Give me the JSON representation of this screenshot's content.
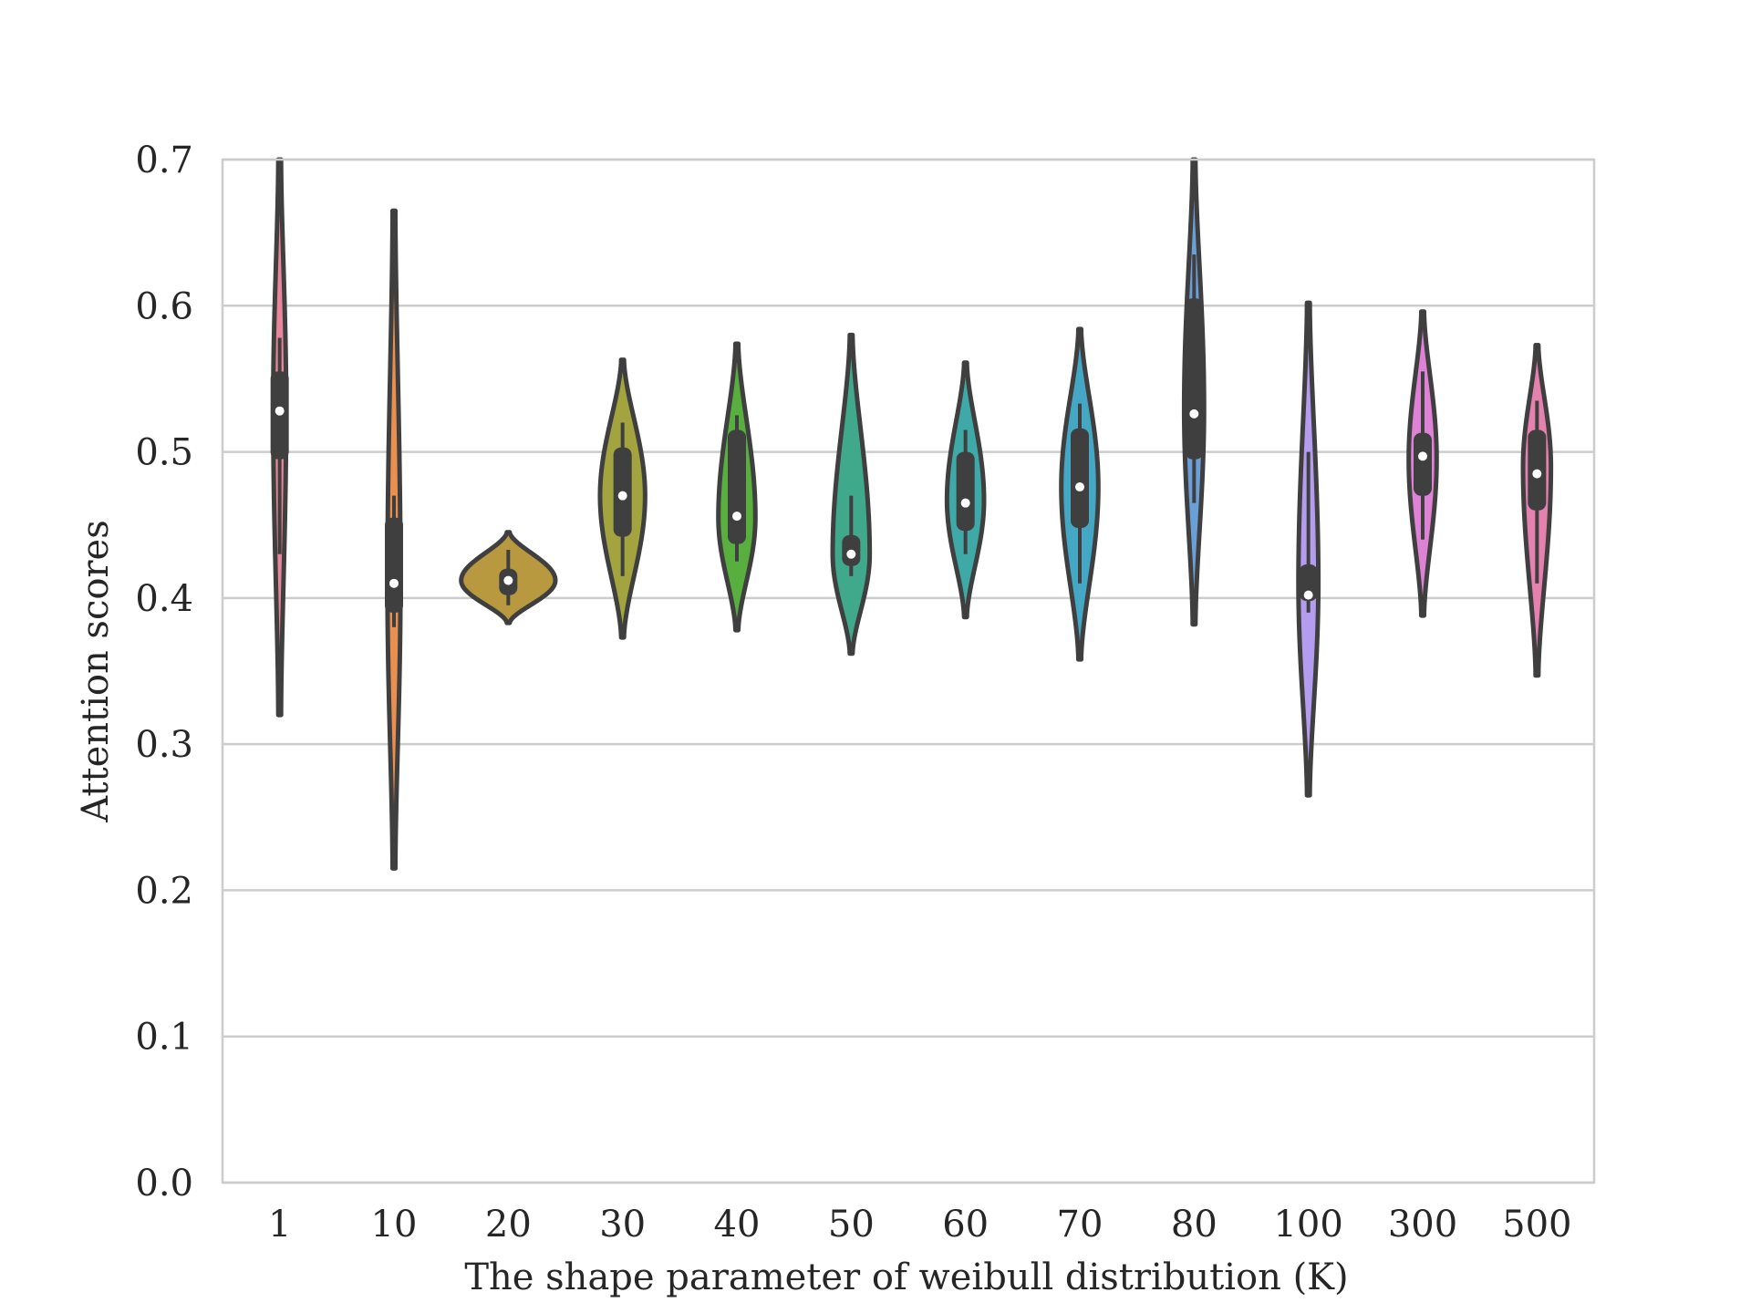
{
  "chart_data": {
    "type": "violin",
    "title": "",
    "xlabel": "The shape parameter of weibull distribution (K)",
    "ylabel": "Attention scores",
    "ylim": [
      0.0,
      0.7
    ],
    "yticks": [
      "0.0",
      "0.1",
      "0.2",
      "0.3",
      "0.4",
      "0.5",
      "0.6",
      "0.7"
    ],
    "grid": "horizontal",
    "legend": "none",
    "categories": [
      "1",
      "10",
      "20",
      "30",
      "40",
      "50",
      "60",
      "70",
      "80",
      "100",
      "300",
      "500"
    ],
    "colors": [
      "#e8869a",
      "#e99050",
      "#b8993f",
      "#a3a43f",
      "#58ae3e",
      "#40a98b",
      "#3ea9a7",
      "#44a7c4",
      "#6b9fd8",
      "#b49cee",
      "#dd82d4",
      "#e481ae"
    ],
    "violins": [
      {
        "min": 0.32,
        "q1": 0.495,
        "median": 0.528,
        "q3": 0.555,
        "max": 0.7,
        "whisker_low": 0.43,
        "whisker_high": 0.578,
        "peak": 0.53,
        "width": 0.09
      },
      {
        "min": 0.215,
        "q1": 0.39,
        "median": 0.41,
        "q3": 0.455,
        "max": 0.665,
        "whisker_low": 0.38,
        "whisker_high": 0.47,
        "peak": 0.41,
        "width": 0.09
      },
      {
        "min": 0.383,
        "q1": 0.402,
        "median": 0.412,
        "q3": 0.42,
        "max": 0.445,
        "whisker_low": 0.395,
        "whisker_high": 0.433,
        "peak": 0.412,
        "width": 0.8
      },
      {
        "min": 0.373,
        "q1": 0.442,
        "median": 0.47,
        "q3": 0.503,
        "max": 0.563,
        "whisker_low": 0.415,
        "whisker_high": 0.52,
        "peak": 0.47,
        "width": 0.37
      },
      {
        "min": 0.378,
        "q1": 0.437,
        "median": 0.456,
        "q3": 0.515,
        "max": 0.574,
        "whisker_low": 0.425,
        "whisker_high": 0.525,
        "peak": 0.455,
        "width": 0.3
      },
      {
        "min": 0.362,
        "q1": 0.422,
        "median": 0.43,
        "q3": 0.443,
        "max": 0.58,
        "whisker_low": 0.415,
        "whisker_high": 0.47,
        "peak": 0.43,
        "width": 0.3
      },
      {
        "min": 0.387,
        "q1": 0.446,
        "median": 0.465,
        "q3": 0.5,
        "max": 0.561,
        "whisker_low": 0.43,
        "whisker_high": 0.515,
        "peak": 0.467,
        "width": 0.3
      },
      {
        "min": 0.358,
        "q1": 0.448,
        "median": 0.476,
        "q3": 0.516,
        "max": 0.584,
        "whisker_low": 0.41,
        "whisker_high": 0.533,
        "peak": 0.476,
        "width": 0.3
      },
      {
        "min": 0.382,
        "q1": 0.495,
        "median": 0.526,
        "q3": 0.605,
        "max": 0.7,
        "whisker_low": 0.465,
        "whisker_high": 0.635,
        "peak": 0.53,
        "width": 0.15
      },
      {
        "min": 0.265,
        "q1": 0.398,
        "median": 0.402,
        "q3": 0.423,
        "max": 0.602,
        "whisker_low": 0.39,
        "whisker_high": 0.5,
        "peak": 0.41,
        "width": 0.15
      },
      {
        "min": 0.388,
        "q1": 0.47,
        "median": 0.497,
        "q3": 0.513,
        "max": 0.596,
        "whisker_low": 0.44,
        "whisker_high": 0.555,
        "peak": 0.495,
        "width": 0.22
      },
      {
        "min": 0.347,
        "q1": 0.46,
        "median": 0.485,
        "q3": 0.515,
        "max": 0.573,
        "whisker_low": 0.41,
        "whisker_high": 0.535,
        "peak": 0.49,
        "width": 0.22
      }
    ]
  }
}
